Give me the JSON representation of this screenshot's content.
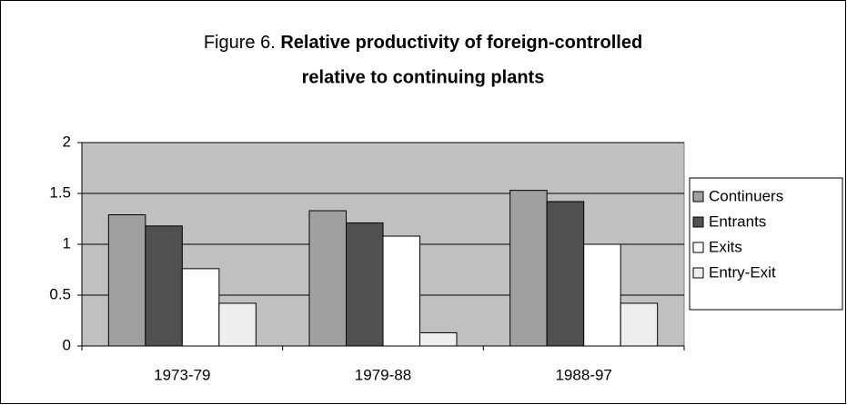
{
  "chart_data": {
    "type": "bar",
    "title": [
      "Figure 6.",
      "Relative productivity of foreign-controlled",
      "relative to continuing plants"
    ],
    "categories": [
      "1973-79",
      "1979-88",
      "1988-97"
    ],
    "series": [
      {
        "name": "Continuers",
        "color": "#a0a0a0",
        "values": [
          1.29,
          1.33,
          1.53
        ]
      },
      {
        "name": "Entrants",
        "color": "#505050",
        "values": [
          1.18,
          1.21,
          1.42
        ]
      },
      {
        "name": "Exits",
        "color": "#ffffff",
        "values": [
          0.76,
          1.08,
          1.0
        ]
      },
      {
        "name": "Entry-Exit",
        "color": "#eeeeee",
        "values": [
          0.42,
          0.13,
          0.42
        ]
      }
    ],
    "ylim": [
      0,
      2
    ],
    "yticks": [
      0,
      0.5,
      1,
      1.5,
      2
    ],
    "grid": true,
    "legend": "right"
  }
}
